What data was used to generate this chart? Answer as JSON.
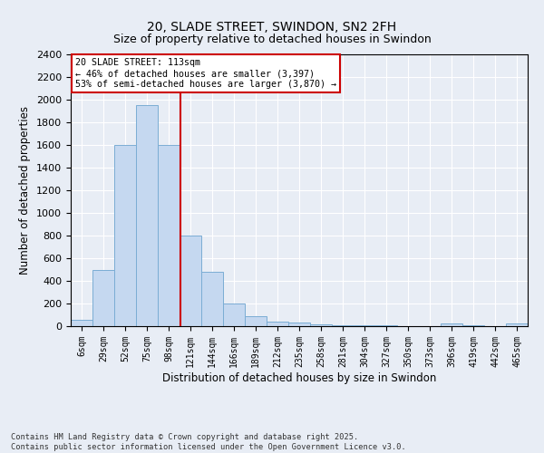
{
  "title1": "20, SLADE STREET, SWINDON, SN2 2FH",
  "title2": "Size of property relative to detached houses in Swindon",
  "xlabel": "Distribution of detached houses by size in Swindon",
  "ylabel": "Number of detached properties",
  "bar_color": "#c5d8f0",
  "bar_edge_color": "#7badd4",
  "categories": [
    "6sqm",
    "29sqm",
    "52sqm",
    "75sqm",
    "98sqm",
    "121sqm",
    "144sqm",
    "166sqm",
    "189sqm",
    "212sqm",
    "235sqm",
    "258sqm",
    "281sqm",
    "304sqm",
    "327sqm",
    "350sqm",
    "373sqm",
    "396sqm",
    "419sqm",
    "442sqm",
    "465sqm"
  ],
  "values": [
    60,
    500,
    1600,
    1950,
    1600,
    800,
    480,
    200,
    90,
    40,
    30,
    15,
    10,
    5,
    5,
    3,
    3,
    25,
    5,
    3,
    25
  ],
  "ylim": [
    0,
    2400
  ],
  "yticks": [
    0,
    200,
    400,
    600,
    800,
    1000,
    1200,
    1400,
    1600,
    1800,
    2000,
    2200,
    2400
  ],
  "vline_x": 4.55,
  "vline_color": "#cc0000",
  "annotation_text": "20 SLADE STREET: 113sqm\n← 46% of detached houses are smaller (3,397)\n53% of semi-detached houses are larger (3,870) →",
  "annotation_box_color": "#cc0000",
  "bg_color": "#e8edf5",
  "grid_color": "#ffffff",
  "footer": "Contains HM Land Registry data © Crown copyright and database right 2025.\nContains public sector information licensed under the Open Government Licence v3.0."
}
